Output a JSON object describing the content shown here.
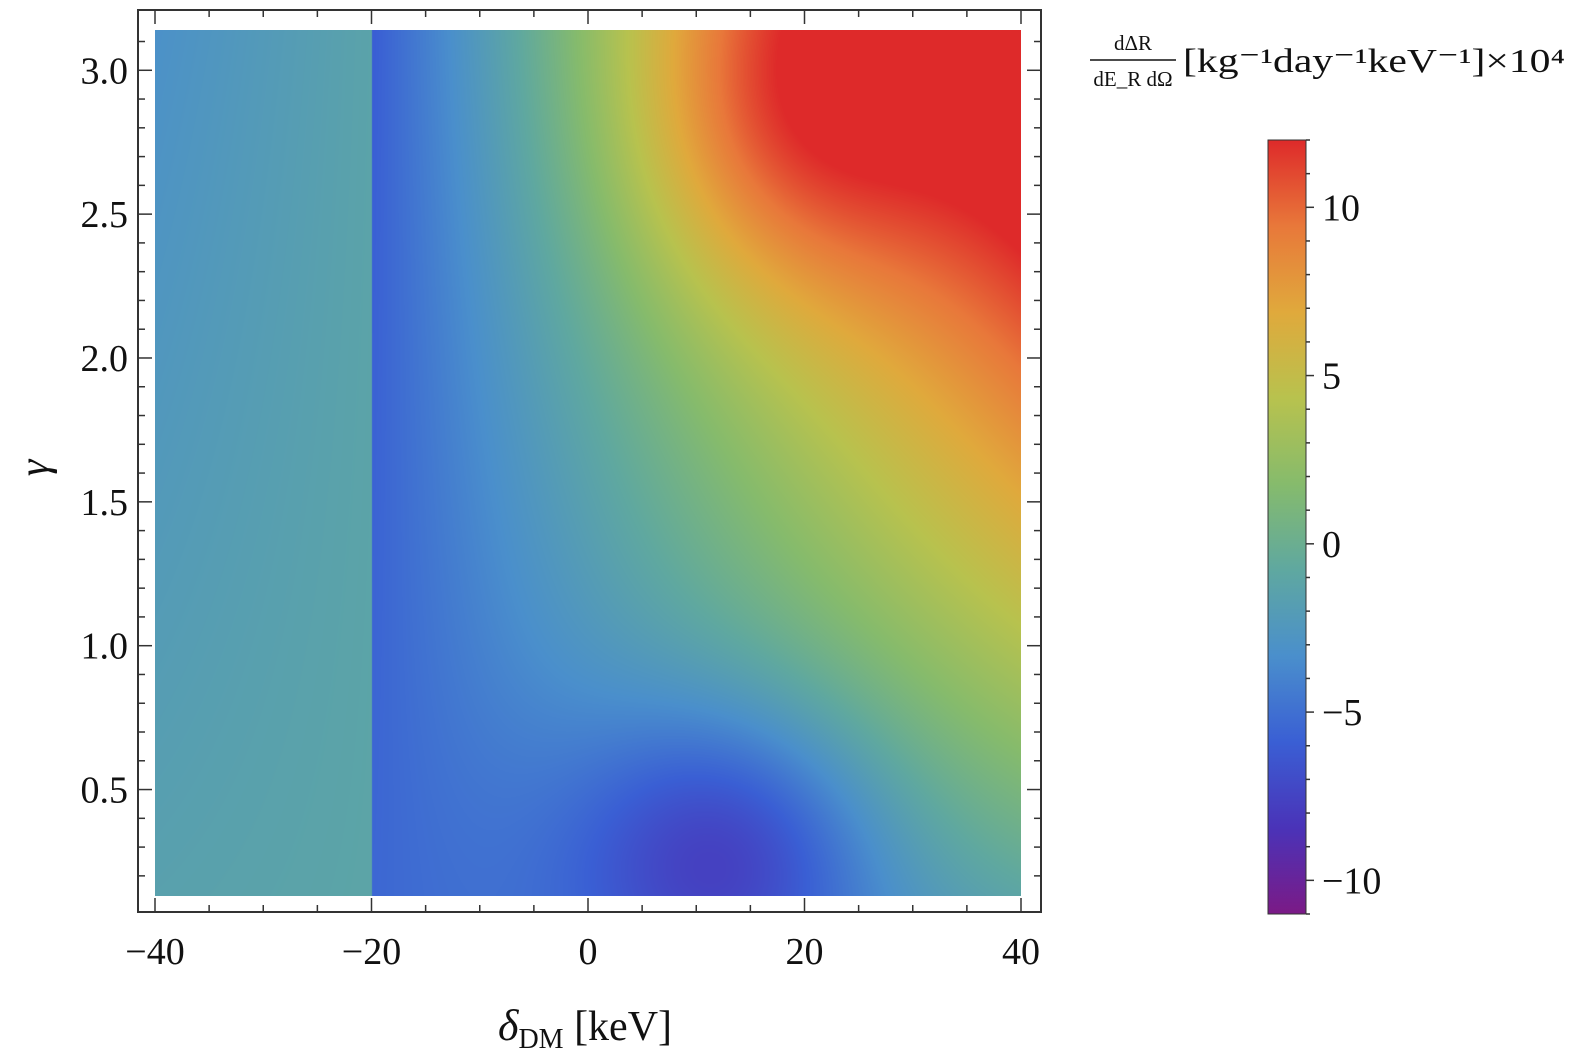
{
  "chart_data": {
    "type": "heatmap",
    "title": "",
    "xlabel": "δ_DM [keV]",
    "xlabel_parts": {
      "symbol": "δ",
      "sub": "DM",
      "unit": " [keV]"
    },
    "ylabel": "γ",
    "xlim": [
      -40,
      40
    ],
    "ylim": [
      0.13,
      3.14
    ],
    "x_ticks": [
      -40,
      -20,
      0,
      20,
      40
    ],
    "x_tick_labels": [
      "−40",
      "−20",
      "0",
      "20",
      "40"
    ],
    "y_ticks": [
      0.5,
      1.0,
      1.5,
      2.0,
      2.5,
      3.0
    ],
    "y_tick_labels": [
      "0.5",
      "1.0",
      "1.5",
      "2.0",
      "2.5",
      "3.0"
    ],
    "colorbar": {
      "title_numerator": "dΔR",
      "title_denominator": "dE_R dΩ",
      "title_units": "[kg⁻¹day⁻¹keV⁻¹]×10⁴",
      "range": [
        -11,
        12
      ],
      "ticks": [
        10,
        5,
        0,
        -5,
        -10
      ],
      "tick_labels": [
        "10",
        "5",
        "0",
        "−5",
        "−10"
      ]
    },
    "colormap": [
      "#7b1a86",
      "#4a33b8",
      "#3a5fd4",
      "#4a8fcc",
      "#5fa8a0",
      "#86bb6c",
      "#b8c24e",
      "#e0a93c",
      "#e8783a",
      "#de2a2a"
    ],
    "z_features": [
      {
        "kind": "maximum",
        "delta_DM": 18,
        "gamma": 2.85,
        "value": 12
      },
      {
        "kind": "minimum",
        "delta_DM": 13,
        "gamma": 0.3,
        "value": -11
      }
    ]
  }
}
